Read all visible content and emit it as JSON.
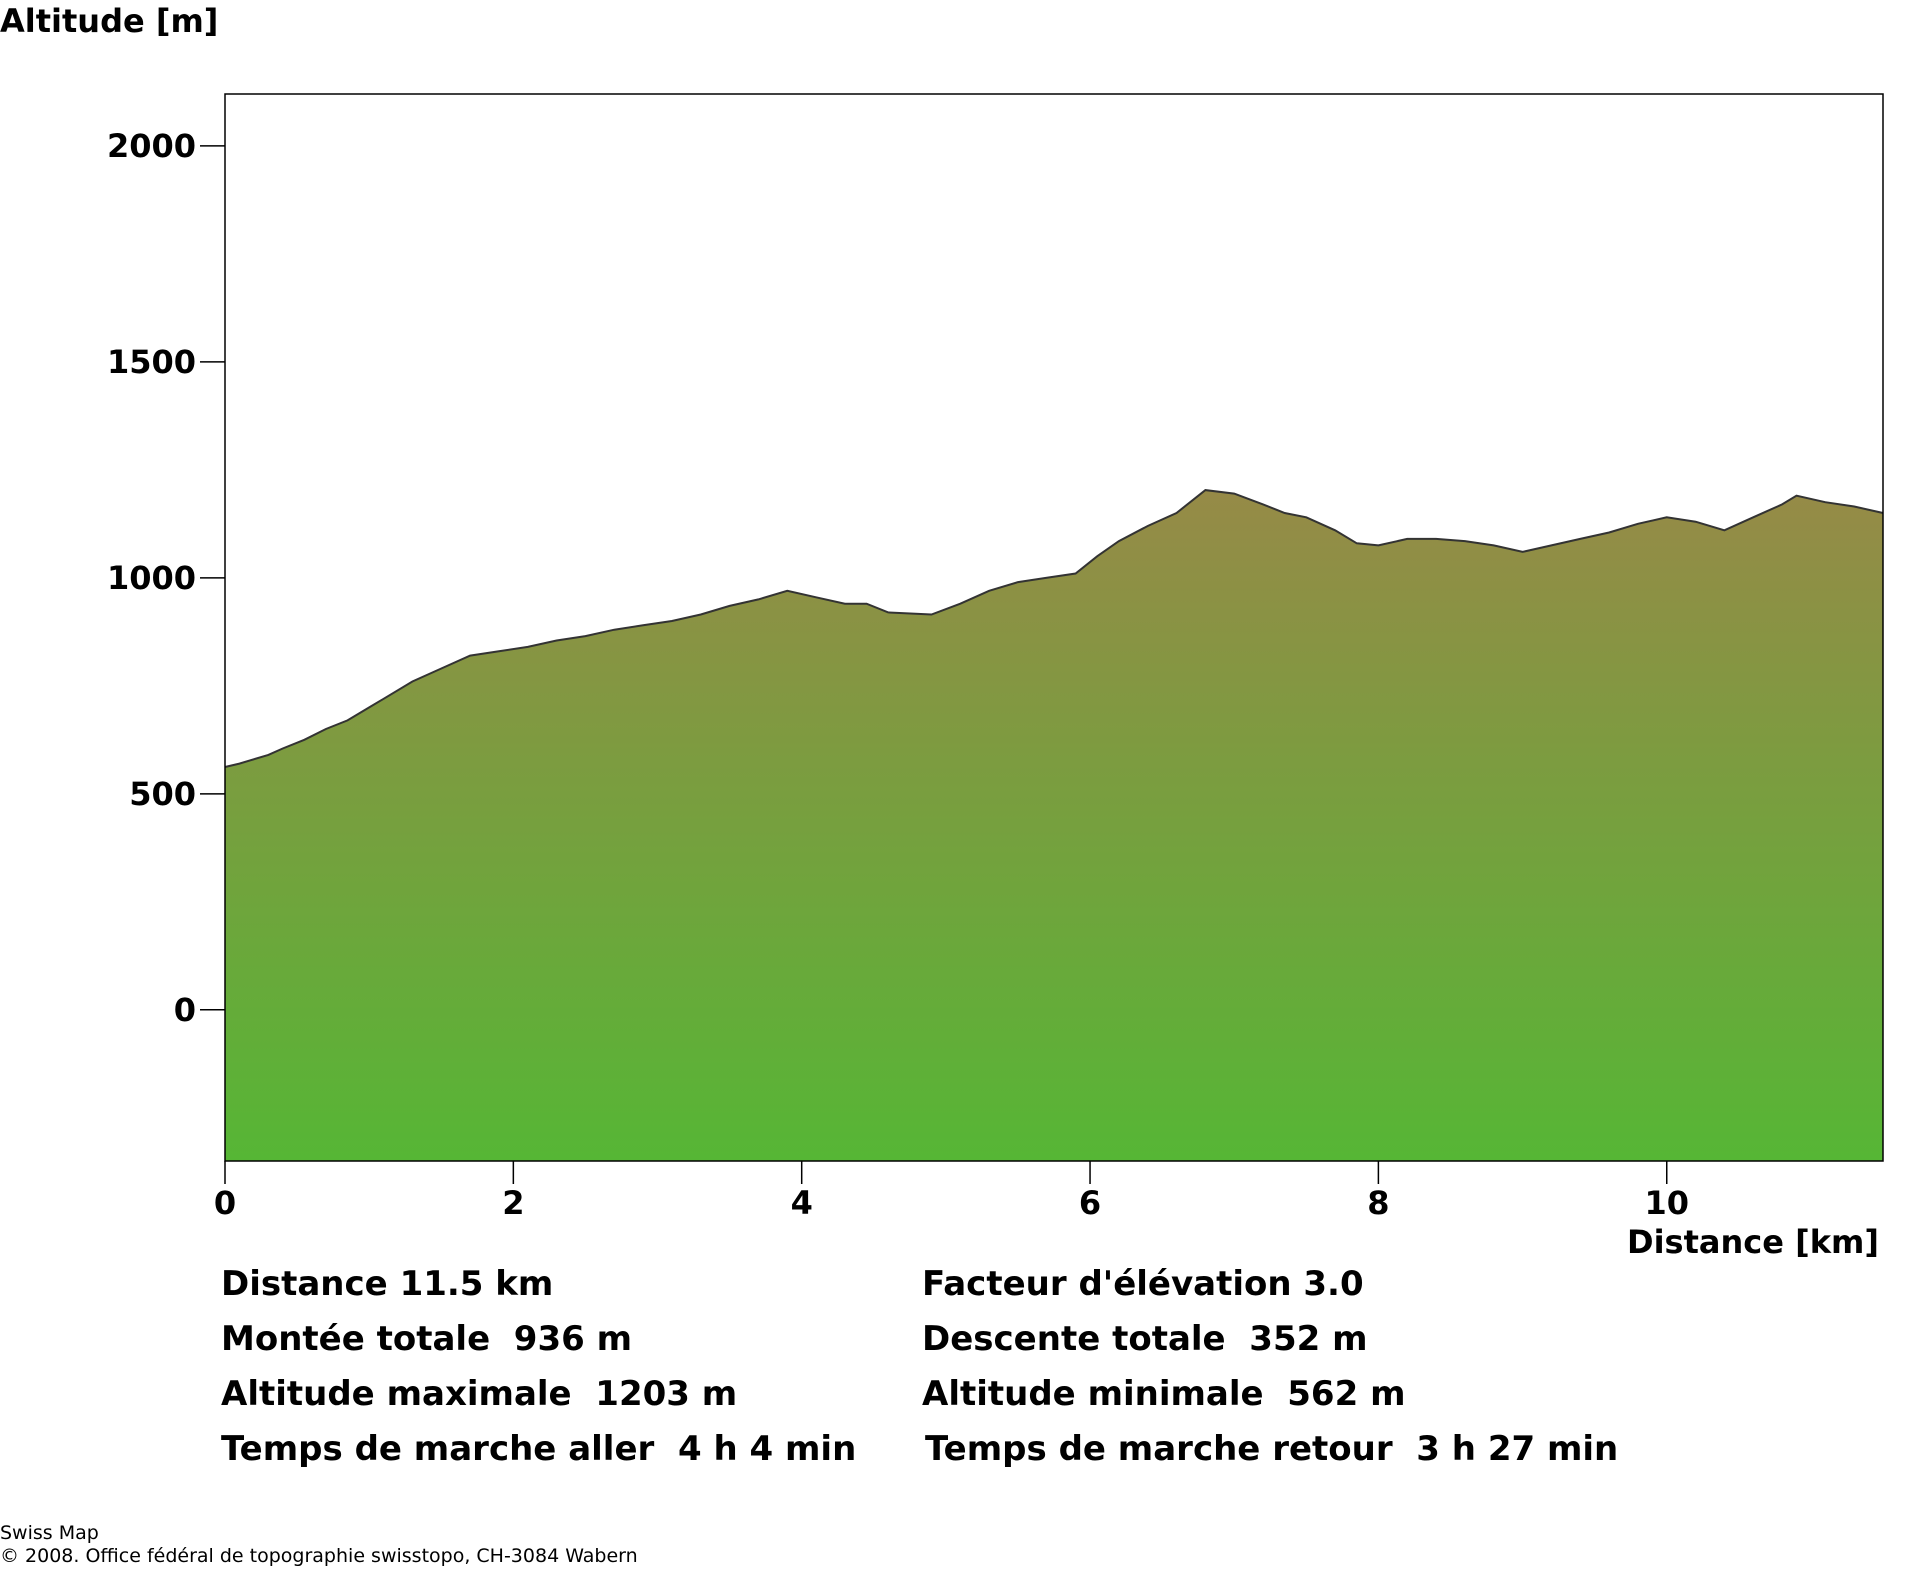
{
  "chart_data": {
    "type": "area",
    "ylabel": "Altitude [m]",
    "xlabel": "Distance [km]",
    "xlim": [
      0,
      11.5
    ],
    "ylim": [
      -350,
      2120
    ],
    "x_ticks": [
      0,
      2,
      4,
      6,
      8,
      10
    ],
    "y_ticks": [
      0,
      500,
      1000,
      1500,
      2000
    ],
    "grid": false,
    "colors": {
      "fill_top": "#968a47",
      "fill_bottom": "#56b635",
      "line": "#333333"
    },
    "series": [
      {
        "x": [
          0,
          0.1,
          0.3,
          0.4,
          0.55,
          0.7,
          0.85,
          1.0,
          1.1,
          1.3,
          1.5,
          1.7,
          1.9,
          2.1,
          2.3,
          2.5,
          2.7,
          2.9,
          3.1,
          3.3,
          3.5,
          3.7,
          3.9,
          4.1,
          4.3,
          4.45,
          4.6,
          4.9,
          5.1,
          5.3,
          5.5,
          5.7,
          5.9,
          6.05,
          6.2,
          6.4,
          6.6,
          6.8,
          7.0,
          7.2,
          7.35,
          7.5,
          7.7,
          7.85,
          8.0,
          8.2,
          8.4,
          8.6,
          8.8,
          9.0,
          9.2,
          9.4,
          9.6,
          9.8,
          10.0,
          10.2,
          10.4,
          10.6,
          10.8,
          10.9,
          11.1,
          11.3,
          11.5
        ],
        "y": [
          562,
          570,
          590,
          605,
          625,
          650,
          670,
          700,
          720,
          760,
          790,
          820,
          830,
          840,
          855,
          865,
          880,
          890,
          900,
          915,
          935,
          950,
          970,
          955,
          940,
          940,
          920,
          915,
          940,
          970,
          990,
          1000,
          1010,
          1050,
          1085,
          1120,
          1150,
          1203,
          1195,
          1170,
          1150,
          1140,
          1110,
          1080,
          1075,
          1090,
          1090,
          1085,
          1075,
          1060,
          1075,
          1090,
          1105,
          1125,
          1140,
          1130,
          1110,
          1140,
          1170,
          1190,
          1175,
          1165,
          1150
        ]
      }
    ]
  },
  "stats": {
    "distance": "Distance 11.5 km",
    "elevation_factor": "Facteur d'élévation 3.0",
    "total_ascent": "Montée totale  936 m",
    "total_descent": "Descente totale  352 m",
    "max_altitude": "Altitude maximale  1203 m",
    "min_altitude": "Altitude minimale  562 m",
    "walk_time_out": "Temps de marche aller  4 h 4 min",
    "walk_time_back": "Temps de marche retour  3 h 27 min"
  },
  "credits": {
    "product": "Swiss Map",
    "copyright": "© 2008. Office fédéral de topographie swisstopo, CH-3084 Wabern"
  }
}
